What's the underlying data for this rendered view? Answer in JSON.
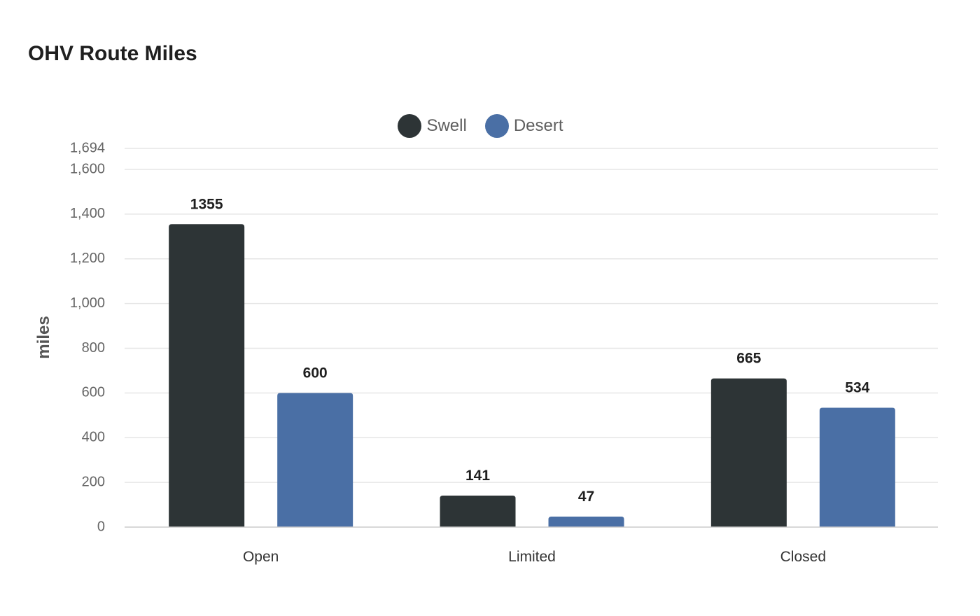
{
  "chart_data": {
    "type": "bar",
    "title": "OHV Route Miles",
    "xlabel": "",
    "ylabel": "miles",
    "categories": [
      "Open",
      "Limited",
      "Closed"
    ],
    "series": [
      {
        "name": "Swell",
        "values": [
          1355,
          141,
          665
        ],
        "color": "#2d3436"
      },
      {
        "name": "Desert",
        "values": [
          600,
          47,
          534
        ],
        "color": "#4a6fa5"
      }
    ],
    "ylim": [
      0,
      1694
    ],
    "yticks": [
      0,
      200,
      400,
      600,
      800,
      1000,
      1200,
      1400,
      1600,
      1694
    ],
    "ytick_labels": [
      "0",
      "200",
      "400",
      "600",
      "800",
      "1,000",
      "1,200",
      "1,400",
      "1,600",
      "1,694"
    ],
    "grid": true,
    "legend_position": "top-center",
    "data_labels": true
  }
}
